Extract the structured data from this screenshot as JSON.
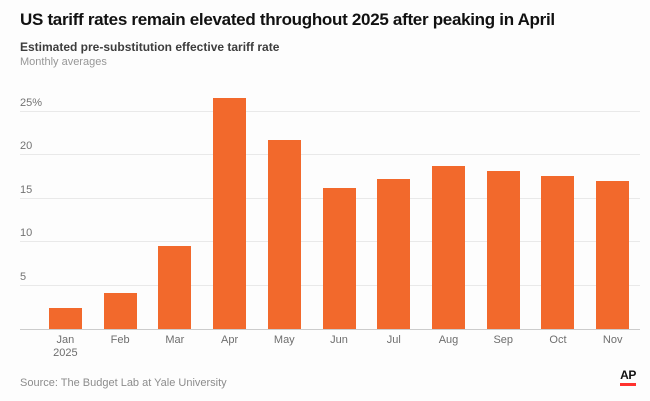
{
  "header": {
    "title": "US tariff rates remain elevated throughout 2025 after peaking in April",
    "subtitle": "Estimated pre-substitution effective tariff rate",
    "note": "Monthly averages"
  },
  "chart_data": {
    "type": "bar",
    "title": "US tariff rates remain elevated throughout 2025 after peaking in April",
    "subtitle": "Estimated pre-substitution effective tariff rate",
    "note": "Monthly averages",
    "categories": [
      "Jan 2025",
      "Feb",
      "Mar",
      "Apr",
      "May",
      "Jun",
      "Jul",
      "Aug",
      "Sep",
      "Oct",
      "Nov"
    ],
    "values": [
      2.4,
      4.2,
      9.6,
      26.6,
      21.8,
      16.3,
      17.3,
      18.8,
      18.2,
      17.6,
      17.0
    ],
    "unit": "percent",
    "xlabel": "",
    "ylabel": "",
    "y_ticks": [
      5,
      10,
      15,
      20,
      25
    ],
    "y_tick_labels": [
      "5",
      "10",
      "15",
      "20",
      "25%"
    ],
    "ylim": [
      0,
      27
    ],
    "grid": true,
    "legend": "none",
    "bar_color": "#f2692c"
  },
  "footer": {
    "source": "Source: The Budget Lab at Yale University",
    "logo_text": "AP"
  },
  "colors": {
    "bar_orange": "#f2692c",
    "ap_red": "#ff322e",
    "title_text": "#111111",
    "subtitle_text": "#3d3d3d",
    "muted_text": "#8c8c8c",
    "axis_text": "#6e6e6e",
    "gridline": "#e9e9e9",
    "baseline": "#cccccc",
    "background": "#fdfdfd"
  }
}
